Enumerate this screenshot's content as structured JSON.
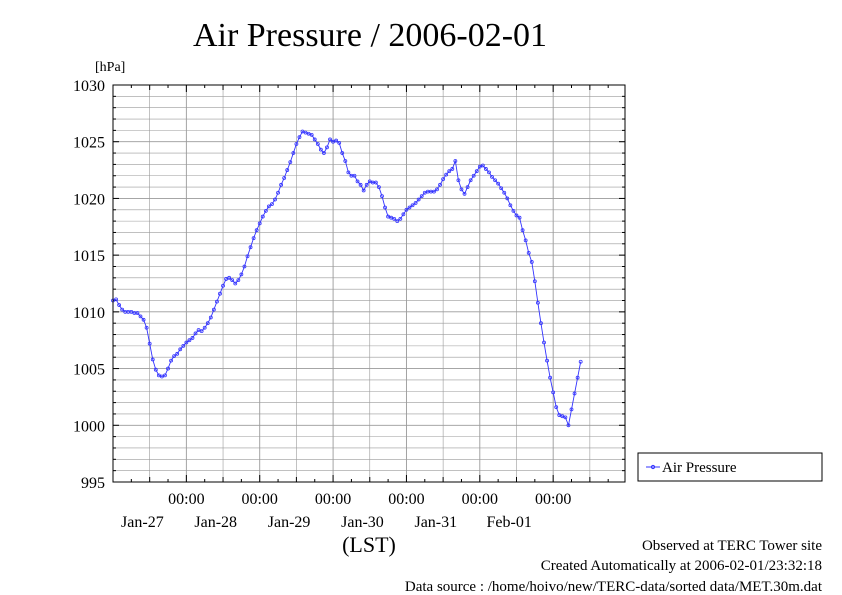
{
  "chart_data": {
    "type": "line",
    "title": "Air Pressure / 2006-02-01",
    "yunit": "[hPa]",
    "xlabel": "(LST)",
    "ylim": [
      995,
      1030
    ],
    "yticks": [
      995,
      1000,
      1005,
      1010,
      1015,
      1020,
      1025,
      1030
    ],
    "xlim": [
      "2006-01-26T00:00",
      "2006-02-01T23:30"
    ],
    "xticks": [
      {
        "time": "2006-01-27T00:00",
        "label": "00:00",
        "date": "Jan-27"
      },
      {
        "time": "2006-01-28T00:00",
        "label": "00:00",
        "date": "Jan-28"
      },
      {
        "time": "2006-01-29T00:00",
        "label": "00:00",
        "date": "Jan-29"
      },
      {
        "time": "2006-01-30T00:00",
        "label": "00:00",
        "date": "Jan-30"
      },
      {
        "time": "2006-01-31T00:00",
        "label": "00:00",
        "date": "Jan-31"
      },
      {
        "time": "2006-02-01T00:00",
        "label": "00:00",
        "date": "Feb-01"
      }
    ],
    "grid": true,
    "legend_position": "right",
    "series": [
      {
        "name": "Air Pressure",
        "color": "#3333ff",
        "points": [
          [
            "2006-01-26T00:00",
            1011.0
          ],
          [
            "2006-01-26T01:00",
            1011.1
          ],
          [
            "2006-01-26T02:00",
            1010.6
          ],
          [
            "2006-01-26T03:00",
            1010.2
          ],
          [
            "2006-01-26T04:00",
            1010.0
          ],
          [
            "2006-01-26T05:00",
            1010.0
          ],
          [
            "2006-01-26T06:00",
            1010.0
          ],
          [
            "2006-01-26T07:00",
            1009.9
          ],
          [
            "2006-01-26T08:00",
            1009.9
          ],
          [
            "2006-01-26T09:00",
            1009.6
          ],
          [
            "2006-01-26T10:00",
            1009.3
          ],
          [
            "2006-01-26T11:00",
            1008.6
          ],
          [
            "2006-01-26T12:00",
            1007.2
          ],
          [
            "2006-01-26T13:00",
            1005.8
          ],
          [
            "2006-01-26T14:00",
            1004.9
          ],
          [
            "2006-01-26T15:00",
            1004.4
          ],
          [
            "2006-01-26T16:00",
            1004.3
          ],
          [
            "2006-01-26T17:00",
            1004.4
          ],
          [
            "2006-01-26T18:00",
            1005.0
          ],
          [
            "2006-01-26T19:00",
            1005.7
          ],
          [
            "2006-01-26T20:00",
            1006.1
          ],
          [
            "2006-01-26T21:00",
            1006.3
          ],
          [
            "2006-01-26T22:00",
            1006.7
          ],
          [
            "2006-01-26T23:00",
            1007.0
          ],
          [
            "2006-01-27T00:00",
            1007.3
          ],
          [
            "2006-01-27T01:00",
            1007.5
          ],
          [
            "2006-01-27T02:00",
            1007.7
          ],
          [
            "2006-01-27T03:00",
            1008.1
          ],
          [
            "2006-01-27T04:00",
            1008.4
          ],
          [
            "2006-01-27T05:00",
            1008.3
          ],
          [
            "2006-01-27T06:00",
            1008.6
          ],
          [
            "2006-01-27T07:00",
            1009.0
          ],
          [
            "2006-01-27T08:00",
            1009.5
          ],
          [
            "2006-01-27T09:00",
            1010.2
          ],
          [
            "2006-01-27T10:00",
            1010.9
          ],
          [
            "2006-01-27T11:00",
            1011.6
          ],
          [
            "2006-01-27T12:00",
            1012.3
          ],
          [
            "2006-01-27T13:00",
            1012.9
          ],
          [
            "2006-01-27T14:00",
            1013.0
          ],
          [
            "2006-01-27T15:00",
            1012.8
          ],
          [
            "2006-01-27T16:00",
            1012.5
          ],
          [
            "2006-01-27T17:00",
            1012.8
          ],
          [
            "2006-01-27T18:00",
            1013.3
          ],
          [
            "2006-01-27T19:00",
            1014.0
          ],
          [
            "2006-01-27T20:00",
            1014.9
          ],
          [
            "2006-01-27T21:00",
            1015.7
          ],
          [
            "2006-01-27T22:00",
            1016.5
          ],
          [
            "2006-01-27T23:00",
            1017.2
          ],
          [
            "2006-01-28T00:00",
            1017.8
          ],
          [
            "2006-01-28T01:00",
            1018.4
          ],
          [
            "2006-01-28T02:00",
            1018.9
          ],
          [
            "2006-01-28T03:00",
            1019.3
          ],
          [
            "2006-01-28T04:00",
            1019.5
          ],
          [
            "2006-01-28T05:00",
            1019.9
          ],
          [
            "2006-01-28T06:00",
            1020.5
          ],
          [
            "2006-01-28T07:00",
            1021.2
          ],
          [
            "2006-01-28T08:00",
            1021.8
          ],
          [
            "2006-01-28T09:00",
            1022.5
          ],
          [
            "2006-01-28T10:00",
            1023.2
          ],
          [
            "2006-01-28T11:00",
            1024.0
          ],
          [
            "2006-01-28T12:00",
            1024.8
          ],
          [
            "2006-01-28T13:00",
            1025.4
          ],
          [
            "2006-01-28T14:00",
            1025.9
          ],
          [
            "2006-01-28T15:00",
            1025.8
          ],
          [
            "2006-01-28T16:00",
            1025.7
          ],
          [
            "2006-01-28T17:00",
            1025.6
          ],
          [
            "2006-01-28T18:00",
            1025.2
          ],
          [
            "2006-01-28T19:00",
            1024.8
          ],
          [
            "2006-01-28T20:00",
            1024.3
          ],
          [
            "2006-01-28T21:00",
            1024.0
          ],
          [
            "2006-01-28T22:00",
            1024.5
          ],
          [
            "2006-01-28T23:00",
            1025.2
          ],
          [
            "2006-01-29T00:00",
            1025.0
          ],
          [
            "2006-01-29T01:00",
            1025.1
          ],
          [
            "2006-01-29T02:00",
            1024.9
          ],
          [
            "2006-01-29T03:00",
            1024.0
          ],
          [
            "2006-01-29T04:00",
            1023.3
          ],
          [
            "2006-01-29T05:00",
            1022.3
          ],
          [
            "2006-01-29T06:00",
            1022.0
          ],
          [
            "2006-01-29T07:00",
            1022.0
          ],
          [
            "2006-01-29T08:00",
            1021.5
          ],
          [
            "2006-01-29T09:00",
            1021.2
          ],
          [
            "2006-01-29T10:00",
            1020.7
          ],
          [
            "2006-01-29T11:00",
            1021.2
          ],
          [
            "2006-01-29T12:00",
            1021.5
          ],
          [
            "2006-01-29T13:00",
            1021.4
          ],
          [
            "2006-01-29T14:00",
            1021.4
          ],
          [
            "2006-01-29T15:00",
            1021.0
          ],
          [
            "2006-01-29T16:00",
            1020.2
          ],
          [
            "2006-01-29T17:00",
            1019.2
          ],
          [
            "2006-01-29T18:00",
            1018.4
          ],
          [
            "2006-01-29T19:00",
            1018.3
          ],
          [
            "2006-01-29T20:00",
            1018.2
          ],
          [
            "2006-01-29T21:00",
            1018.0
          ],
          [
            "2006-01-29T22:00",
            1018.2
          ],
          [
            "2006-01-29T23:00",
            1018.6
          ],
          [
            "2006-01-30T00:00",
            1019.0
          ],
          [
            "2006-01-30T01:00",
            1019.2
          ],
          [
            "2006-01-30T02:00",
            1019.4
          ],
          [
            "2006-01-30T03:00",
            1019.6
          ],
          [
            "2006-01-30T04:00",
            1019.9
          ],
          [
            "2006-01-30T05:00",
            1020.2
          ],
          [
            "2006-01-30T06:00",
            1020.5
          ],
          [
            "2006-01-30T07:00",
            1020.6
          ],
          [
            "2006-01-30T08:00",
            1020.6
          ],
          [
            "2006-01-30T09:00",
            1020.6
          ],
          [
            "2006-01-30T10:00",
            1020.8
          ],
          [
            "2006-01-30T11:00",
            1021.2
          ],
          [
            "2006-01-30T12:00",
            1021.7
          ],
          [
            "2006-01-30T13:00",
            1022.1
          ],
          [
            "2006-01-30T14:00",
            1022.4
          ],
          [
            "2006-01-30T15:00",
            1022.6
          ],
          [
            "2006-01-30T16:00",
            1023.3
          ],
          [
            "2006-01-30T17:00",
            1021.6
          ],
          [
            "2006-01-30T18:00",
            1020.8
          ],
          [
            "2006-01-30T19:00",
            1020.4
          ],
          [
            "2006-01-30T20:00",
            1021.0
          ],
          [
            "2006-01-30T21:00",
            1021.6
          ],
          [
            "2006-01-30T22:00",
            1022.0
          ],
          [
            "2006-01-30T23:00",
            1022.4
          ],
          [
            "2006-01-31T00:00",
            1022.8
          ],
          [
            "2006-01-31T01:00",
            1022.9
          ],
          [
            "2006-01-31T02:00",
            1022.6
          ],
          [
            "2006-01-31T03:00",
            1022.3
          ],
          [
            "2006-01-31T04:00",
            1021.9
          ],
          [
            "2006-01-31T05:00",
            1021.6
          ],
          [
            "2006-01-31T06:00",
            1021.3
          ],
          [
            "2006-01-31T07:00",
            1020.9
          ],
          [
            "2006-01-31T08:00",
            1020.5
          ],
          [
            "2006-01-31T09:00",
            1020.0
          ],
          [
            "2006-01-31T10:00",
            1019.4
          ],
          [
            "2006-01-31T11:00",
            1018.9
          ],
          [
            "2006-01-31T12:00",
            1018.5
          ],
          [
            "2006-01-31T13:00",
            1018.3
          ],
          [
            "2006-01-31T14:00",
            1017.2
          ],
          [
            "2006-01-31T15:00",
            1016.3
          ],
          [
            "2006-01-31T16:00",
            1015.2
          ],
          [
            "2006-01-31T17:00",
            1014.4
          ],
          [
            "2006-01-31T18:00",
            1012.7
          ],
          [
            "2006-01-31T19:00",
            1010.8
          ],
          [
            "2006-01-31T20:00",
            1009.0
          ],
          [
            "2006-01-31T21:00",
            1007.3
          ],
          [
            "2006-01-31T22:00",
            1005.7
          ],
          [
            "2006-01-31T23:00",
            1004.2
          ],
          [
            "2006-02-01T00:00",
            1002.9
          ],
          [
            "2006-02-01T01:00",
            1001.6
          ],
          [
            "2006-02-01T02:00",
            1000.9
          ],
          [
            "2006-02-01T03:00",
            1000.8
          ],
          [
            "2006-02-01T04:00",
            1000.7
          ],
          [
            "2006-02-01T05:00",
            1000.0
          ],
          [
            "2006-02-01T06:00",
            1001.4
          ],
          [
            "2006-02-01T07:00",
            1002.8
          ],
          [
            "2006-02-01T08:00",
            1004.2
          ],
          [
            "2006-02-01T09:00",
            1005.6
          ]
        ]
      }
    ]
  },
  "footer": {
    "line1": "Observed at TERC Tower site",
    "line2": "Created Automatically at 2006-02-01/23:32:18",
    "line3": "Data source : /home/hoivo/new/TERC-data/sorted  data/MET.30m.dat"
  }
}
